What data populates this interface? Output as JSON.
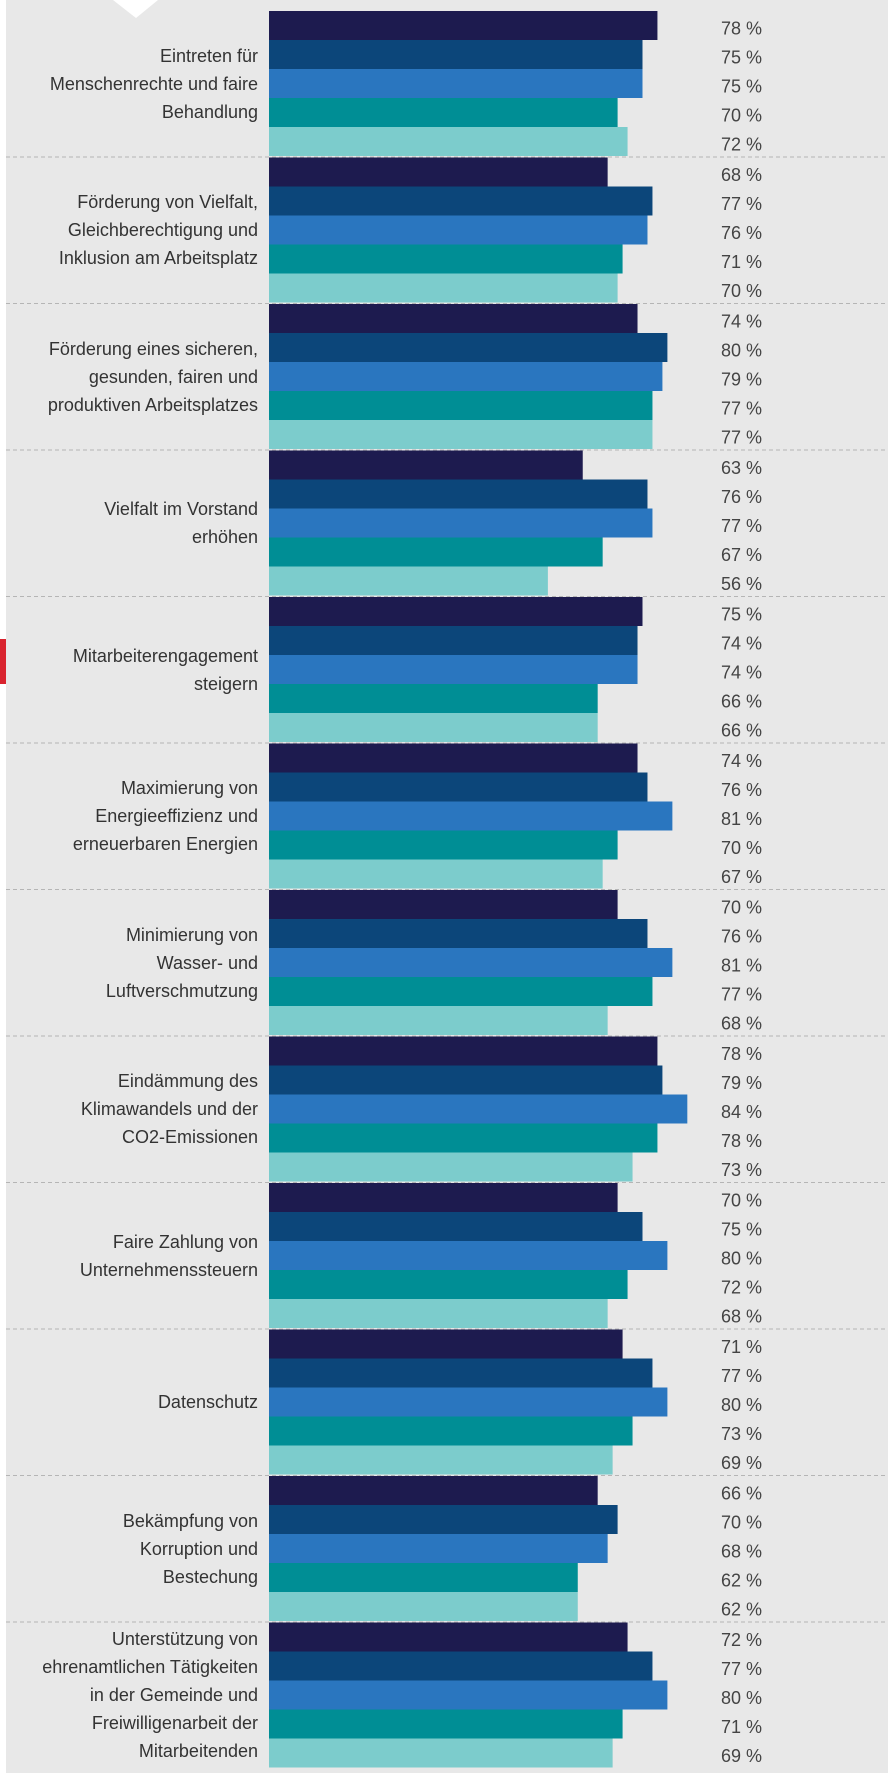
{
  "chart_data": {
    "type": "bar",
    "orientation": "horizontal",
    "categories": [
      "Eintreten für\nMenschenrechte und faire\nBehandlung",
      "Förderung von Vielfalt,\nGleichberechtigung und\nInklusion am Arbeitsplatz",
      "Förderung eines sicheren,\ngesunden, fairen und\nproduktiven Arbeitsplatzes",
      "Vielfalt im Vorstand\nerhöhen",
      "Mitarbeiterengagement\nsteigern",
      "Maximierung von\nEnergieeffizienz und\nerneuerbaren Energien",
      "Minimierung von\nWasser- und\nLuftverschmutzung",
      "Eindämmung des\nKlimawandels und der\nCO2-Emissionen",
      "Faire Zahlung von\nUnternehmenssteuern",
      "Datenschutz",
      "Bekämpfung von\nKorruption und\nBestechung",
      "Unterstützung von\nehrenamtlichen Tätigkeiten\nin der Gemeinde und\nFreiwilligenarbeit der\nMitarbeitenden"
    ],
    "series": [
      {
        "color": "#1d1b4f",
        "values": [
          78,
          68,
          74,
          63,
          75,
          74,
          70,
          78,
          70,
          71,
          66,
          72
        ],
        "value_labels": [
          "78 %",
          "68 %",
          "74 %",
          "63 %",
          "75 %",
          "74 %",
          "70 %",
          "78 %",
          "70 %",
          "71 %",
          "66 %",
          "72 %"
        ]
      },
      {
        "color": "#0c467a",
        "values": [
          75,
          77,
          80,
          76,
          74,
          76,
          76,
          79,
          75,
          77,
          70,
          77
        ],
        "value_labels": [
          "75 %",
          "77 %",
          "80 %",
          "76 %",
          "74 %",
          "76 %",
          "76 %",
          "79 %",
          "75 %",
          "77 %",
          "70 %",
          "77 %"
        ]
      },
      {
        "color": "#2a76bf",
        "values": [
          75,
          76,
          79,
          77,
          74,
          81,
          81,
          84,
          80,
          80,
          68,
          80
        ],
        "value_labels": [
          "75 %",
          "76 %",
          "79 %",
          "77 %",
          "74 %",
          "81 %",
          "81 %",
          "84 %",
          "80 %",
          "80 %",
          "68 %",
          "80 %"
        ]
      },
      {
        "color": "#008e95",
        "values": [
          70,
          71,
          77,
          67,
          66,
          70,
          77,
          78,
          72,
          73,
          62,
          71
        ],
        "value_labels": [
          "70 %",
          "71 %",
          "77 %",
          "67 %",
          "66 %",
          "70 %",
          "77 %",
          "78 %",
          "72 %",
          "73 %",
          "62 %",
          "71 %"
        ]
      },
      {
        "color": "#7ccccc",
        "values": [
          72,
          70,
          77,
          56,
          66,
          67,
          68,
          73,
          68,
          69,
          62,
          69
        ],
        "value_labels": [
          "72 %",
          "70 %",
          "77 %",
          "56 %",
          "66 %",
          "67 %",
          "68 %",
          "73 %",
          "68 %",
          "69 %",
          "62 %",
          "69 %"
        ]
      }
    ],
    "xlim": [
      0,
      100
    ]
  }
}
